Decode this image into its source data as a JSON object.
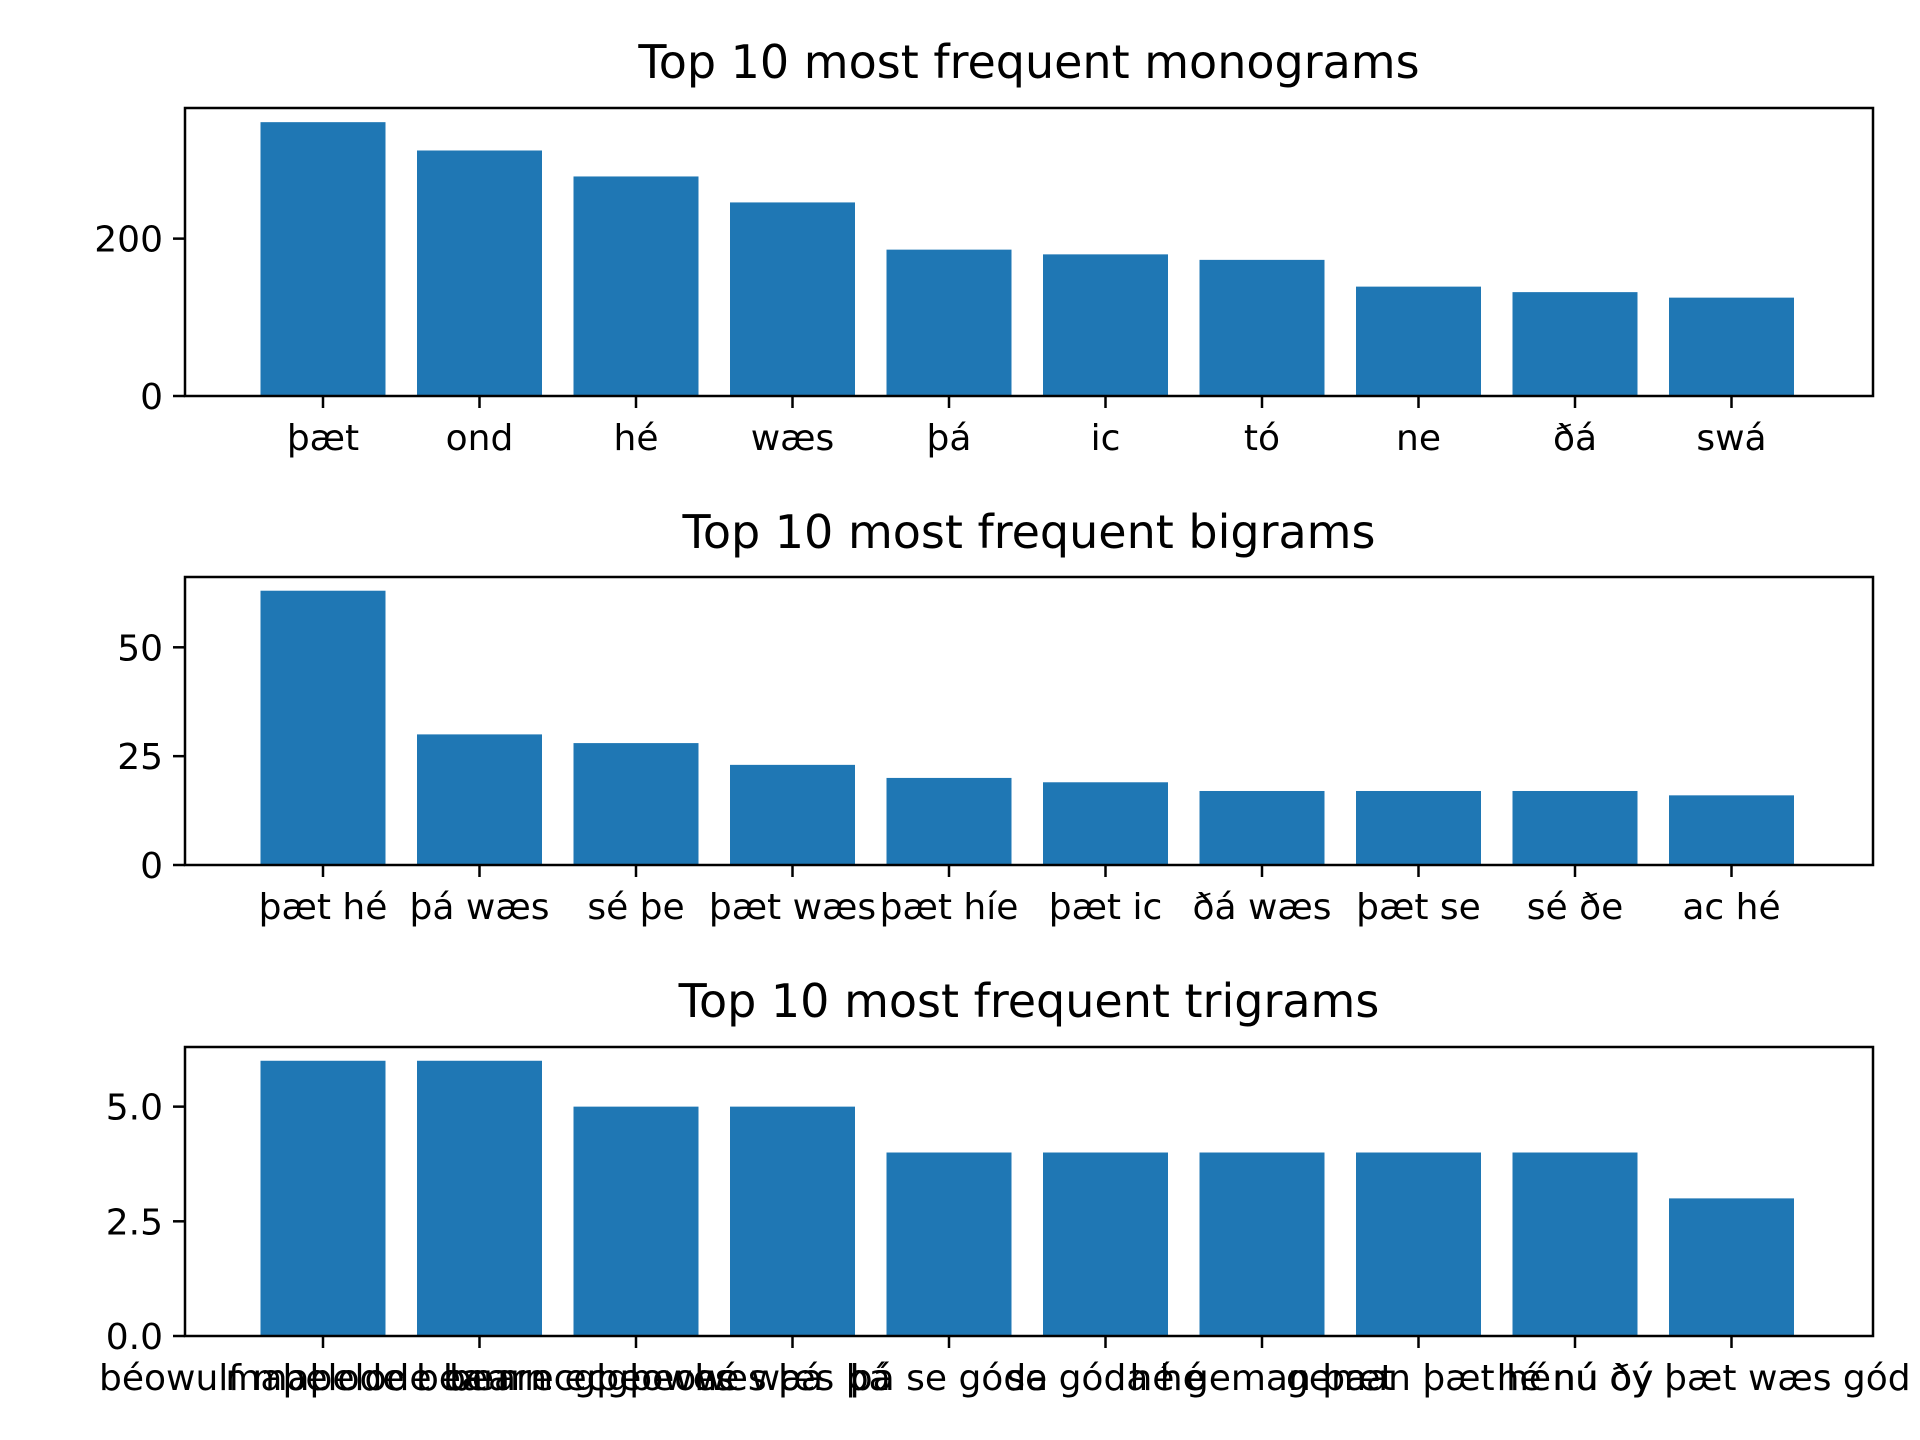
{
  "chart_data": [
    {
      "type": "bar",
      "title": "Top 10 most frequent monograms",
      "xlabel": "",
      "ylabel": "",
      "categories": [
        "þæt",
        "ond",
        "hé",
        "wæs",
        "þá",
        "ic",
        "tó",
        "ne",
        "ðá",
        "swá"
      ],
      "values": [
        348,
        312,
        279,
        246,
        186,
        180,
        173,
        139,
        132,
        125
      ],
      "ylim": [
        0,
        366
      ],
      "yticks": [
        0,
        200
      ],
      "ytick_labels": [
        "0",
        "200"
      ],
      "grid": false,
      "legend": "none"
    },
    {
      "type": "bar",
      "title": "Top 10 most frequent bigrams",
      "xlabel": "",
      "ylabel": "",
      "categories": [
        "þæt hé",
        "þá wæs",
        "sé þe",
        "þæt wæs",
        "þæt híe",
        "þæt ic",
        "ðá wæs",
        "þæt se",
        "sé ðe",
        "ac hé"
      ],
      "values": [
        63,
        30,
        28,
        23,
        20,
        19,
        17,
        17,
        17,
        16
      ],
      "ylim": [
        0,
        66.15
      ],
      "yticks": [
        0,
        25,
        50
      ],
      "ytick_labels": [
        "0",
        "25",
        "50"
      ],
      "grid": false,
      "legend": "none"
    },
    {
      "type": "bar",
      "title": "Top 10 most frequent trigrams",
      "xlabel": "",
      "ylabel": "",
      "categories": [
        "béowulf maþelode bearn",
        "maþelode bearn ecgþeowes",
        "bearn ecgþeowes þá",
        "hé wæs þá",
        "þá se góda",
        "se góda hé",
        "hé geman þæt",
        "geman þæt hé",
        "hé nú ðý",
        "nú ðý þæt wæs gód"
      ],
      "values": [
        6,
        6,
        5,
        5,
        4,
        4,
        4,
        4,
        4,
        3
      ],
      "ylim": [
        0,
        6.3
      ],
      "yticks": [
        0,
        2.5,
        5
      ],
      "ytick_labels": [
        "0.0",
        "2.5",
        "5.0"
      ],
      "grid": false,
      "legend": "none"
    }
  ],
  "colors": {
    "bar": "#1f77b4",
    "axes": "#000000",
    "background": "#ffffff"
  }
}
